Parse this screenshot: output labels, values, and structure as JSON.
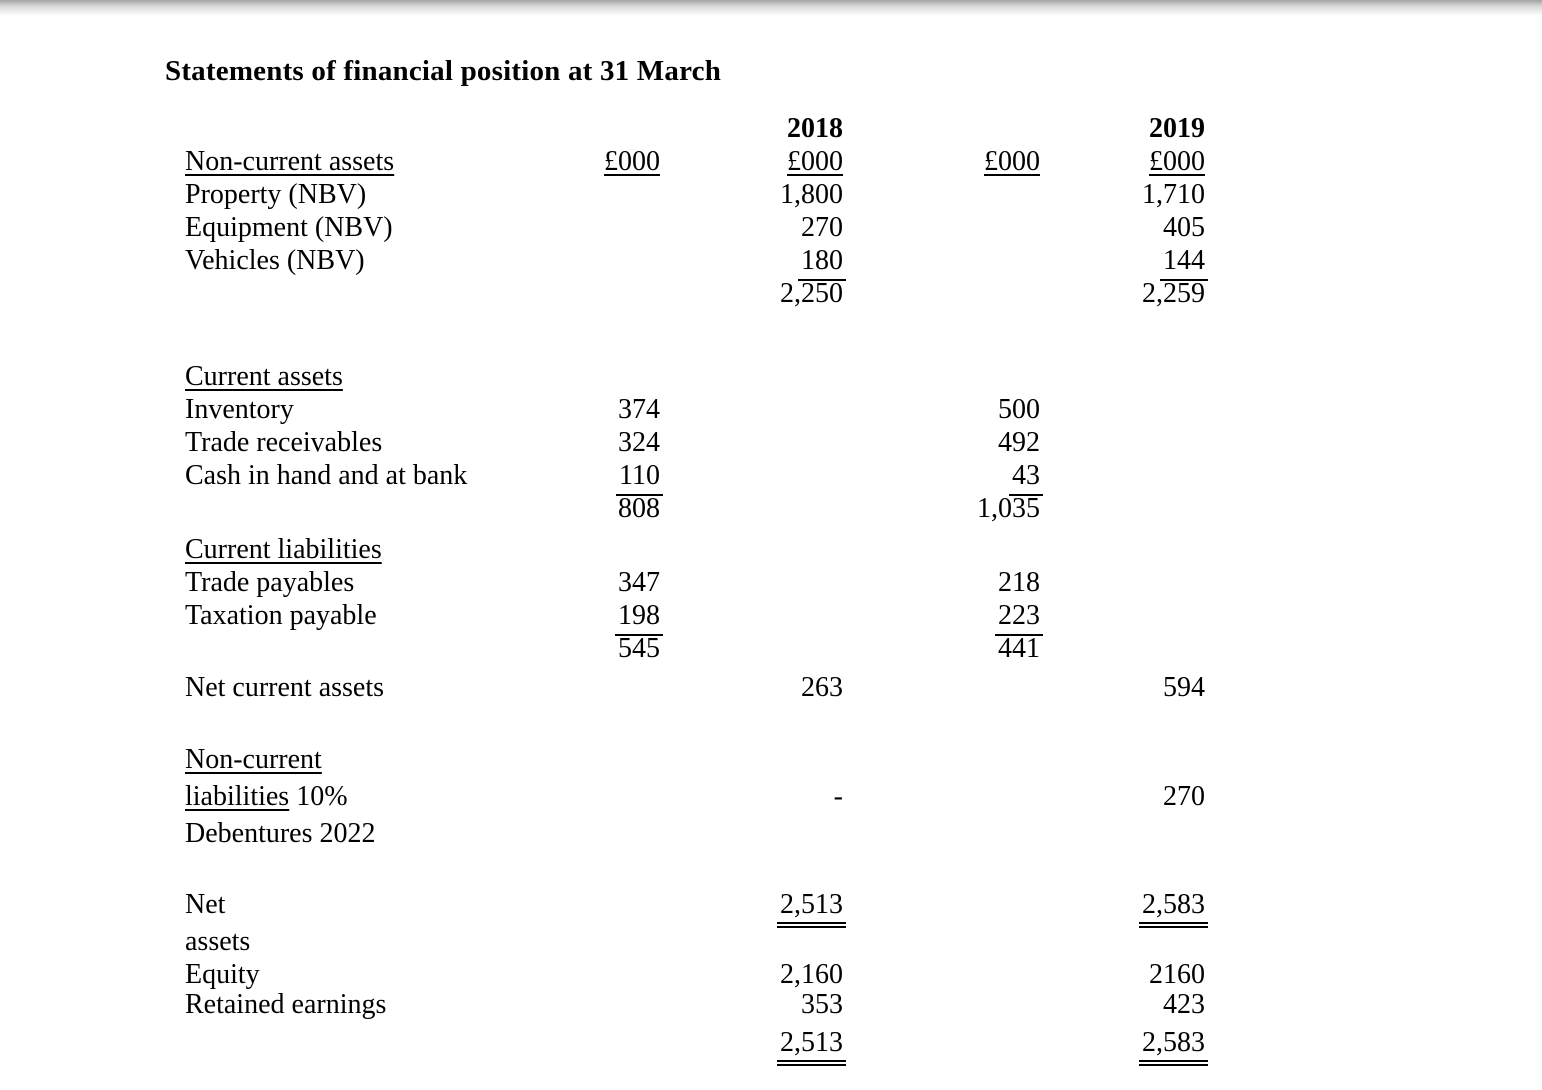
{
  "title": "Statements of financial position at 31 March",
  "columns": {
    "year_2018": "2018",
    "year_2019": "2019",
    "unit": "£000"
  },
  "rows": {
    "non_current_assets_header": {
      "label": "Non-current assets"
    },
    "property": {
      "label": "Property (NBV)",
      "y2018": "1,800",
      "y2019": "1,710"
    },
    "equipment": {
      "label": "Equipment (NBV)",
      "y2018": "270",
      "y2019": "405"
    },
    "vehicles": {
      "label": "Vehicles (NBV)",
      "y2018": "180",
      "y2019": "144"
    },
    "non_current_assets_total": {
      "y2018": "2,250",
      "y2019": "2,259"
    },
    "current_assets_header": {
      "label": "Current assets"
    },
    "inventory": {
      "label": "Inventory",
      "y2018": "374",
      "y2019": "500"
    },
    "trade_receivables": {
      "label": "Trade receivables",
      "y2018": "324",
      "y2019": "492"
    },
    "cash_in_hand": {
      "label": "Cash in hand and at bank",
      "y2018": "110",
      "y2019": "43"
    },
    "current_assets_total": {
      "y2018": "808",
      "y2019": "1,035"
    },
    "current_liabilities_header": {
      "label": "Current liabilities"
    },
    "trade_payables": {
      "label": "Trade payables",
      "y2018": "347",
      "y2019": "218"
    },
    "taxation_payable": {
      "label": "Taxation payable",
      "y2018": "198",
      "y2019": "223"
    },
    "current_liabilities_total": {
      "y2018": "545",
      "y2019": "441"
    },
    "net_current_assets": {
      "label": "Net current assets",
      "y2018": "263",
      "y2019": "594"
    },
    "non_current_liabilities": {
      "label_line1": "Non-current",
      "label_line2_underlined": "liabilities",
      "label_line2_rest": " 10%",
      "label_line3": "Debentures 2022",
      "y2018": "-",
      "y2019": "270"
    },
    "net_assets": {
      "label_line1": "Net",
      "label_line2": "assets",
      "y2018": "2,513",
      "y2019": "2,583"
    },
    "equity": {
      "label": "Equity",
      "y2018": "2,160",
      "y2019": "2160"
    },
    "retained_earnings": {
      "label": "Retained earnings",
      "y2018": "353",
      "y2019": "423"
    },
    "equity_total": {
      "y2018": "2,513",
      "y2019": "2,583"
    }
  }
}
